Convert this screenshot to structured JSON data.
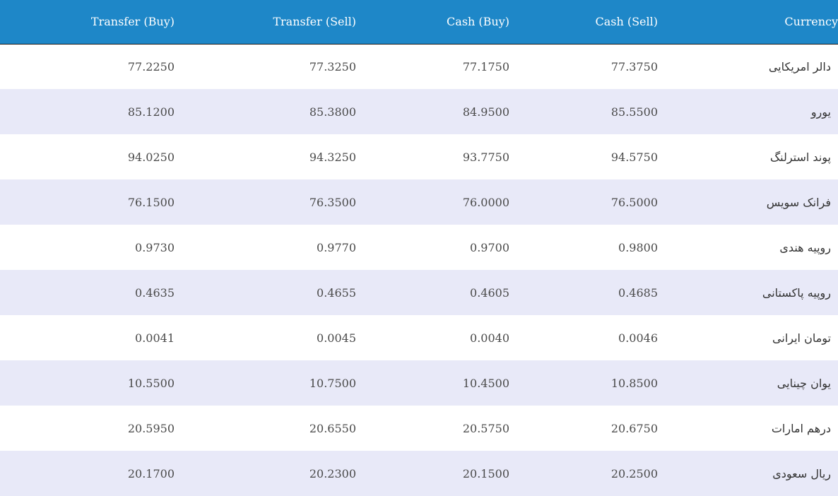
{
  "table": {
    "headers": {
      "transfer_buy": "Transfer (Buy)",
      "transfer_sell": "Transfer (Sell)",
      "cash_buy": "Cash (Buy)",
      "cash_sell": "Cash (Sell)",
      "currency": "Currency"
    },
    "rows": [
      {
        "transfer_buy": "77.2250",
        "transfer_sell": "77.3250",
        "cash_buy": "77.1750",
        "cash_sell": "77.3750",
        "currency": "دالر امریکایی"
      },
      {
        "transfer_buy": "85.1200",
        "transfer_sell": "85.3800",
        "cash_buy": "84.9500",
        "cash_sell": "85.5500",
        "currency": "یورو"
      },
      {
        "transfer_buy": "94.0250",
        "transfer_sell": "94.3250",
        "cash_buy": "93.7750",
        "cash_sell": "94.5750",
        "currency": "پوند استرلنگ"
      },
      {
        "transfer_buy": "76.1500",
        "transfer_sell": "76.3500",
        "cash_buy": "76.0000",
        "cash_sell": "76.5000",
        "currency": "فرانک سویس"
      },
      {
        "transfer_buy": "0.9730",
        "transfer_sell": "0.9770",
        "cash_buy": "0.9700",
        "cash_sell": "0.9800",
        "currency": "روپیه هندی"
      },
      {
        "transfer_buy": "0.4635",
        "transfer_sell": "0.4655",
        "cash_buy": "0.4605",
        "cash_sell": "0.4685",
        "currency": "روپیه پاکستانی"
      },
      {
        "transfer_buy": "0.0041",
        "transfer_sell": "0.0045",
        "cash_buy": "0.0040",
        "cash_sell": "0.0046",
        "currency": "تومان ایرانی"
      },
      {
        "transfer_buy": "10.5500",
        "transfer_sell": "10.7500",
        "cash_buy": "10.4500",
        "cash_sell": "10.8500",
        "currency": "یوان چینایی"
      },
      {
        "transfer_buy": "20.5950",
        "transfer_sell": "20.6550",
        "cash_buy": "20.5750",
        "cash_sell": "20.6750",
        "currency": "درهم امارات"
      },
      {
        "transfer_buy": "20.1700",
        "transfer_sell": "20.2300",
        "cash_buy": "20.1500",
        "cash_sell": "20.2500",
        "currency": "ریال سعودی"
      }
    ]
  },
  "colors": {
    "header_background": "#1e87c8",
    "header_text": "#ffffff",
    "row_alt_background": "#e8e9f8",
    "row_background": "#ffffff"
  }
}
